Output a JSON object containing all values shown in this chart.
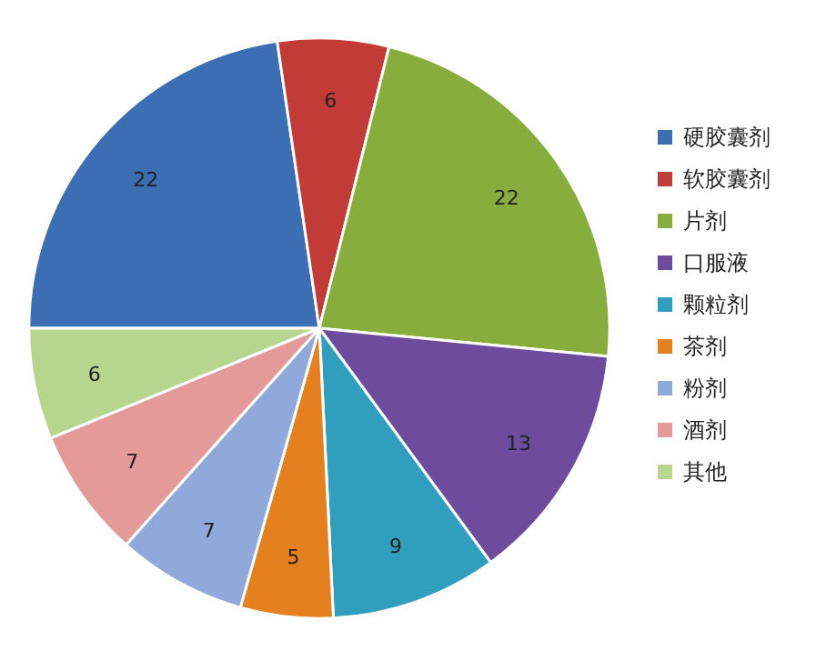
{
  "chart_data": {
    "type": "pie",
    "categories": [
      "硬胶囊剂",
      "软胶囊剂",
      "片剂",
      "口服液",
      "颗粒剂",
      "茶剂",
      "粉剂",
      "酒剂",
      "其他"
    ],
    "values": [
      22,
      6,
      22,
      13,
      9,
      5,
      7,
      7,
      6
    ],
    "colors": [
      "#3b6eb3",
      "#c23b36",
      "#87ad3d",
      "#6e4b9c",
      "#2f9fbd",
      "#e5801f",
      "#8ea9da",
      "#e39a99",
      "#b6d68d"
    ],
    "data_labels": true,
    "legend": "right"
  }
}
